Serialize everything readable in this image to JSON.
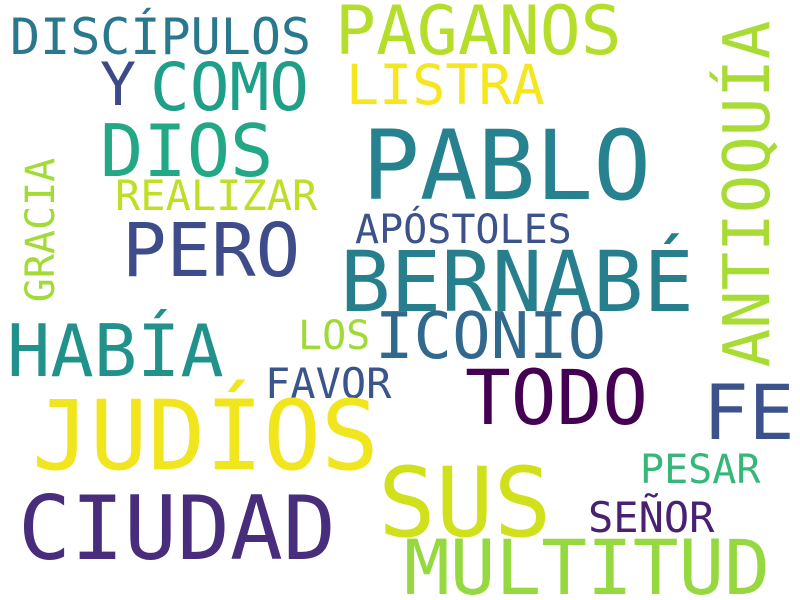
{
  "words": {
    "pablo": {
      "text": "PABLO",
      "color": "#26828e"
    },
    "bernabe": {
      "text": "BERNABÉ",
      "color": "#277f8e"
    },
    "judios": {
      "text": "JUDÍOS",
      "color": "#f1e51d"
    },
    "sus": {
      "text": "SUS",
      "color": "#d0e11c"
    },
    "ciudad": {
      "text": "CIUDAD",
      "color": "#472d7b"
    },
    "multitud": {
      "text": "MULTITUD",
      "color": "#95d840"
    },
    "paganos": {
      "text": "PAGANOS",
      "color": "#b5de2b"
    },
    "todo": {
      "text": "TODO",
      "color": "#440154"
    },
    "antioquia": {
      "text": "ANTIOQUÍA",
      "color": "#a8db34"
    },
    "habia": {
      "text": "HABÍA",
      "color": "#21918c"
    },
    "fe": {
      "text": "FE",
      "color": "#3b528b"
    },
    "como": {
      "text": "COMO",
      "color": "#1f9e89"
    },
    "dios": {
      "text": "DIOS",
      "color": "#22a884"
    },
    "pero": {
      "text": "PERO",
      "color": "#3e4c8a"
    },
    "iconio": {
      "text": "ICONIO",
      "color": "#31688e"
    },
    "discipulos": {
      "text": "DISCÍPULOS",
      "color": "#2a788e"
    },
    "listra": {
      "text": "LISTRA",
      "color": "#f6e620"
    },
    "y": {
      "text": "Y",
      "color": "#3e4989"
    },
    "realizar": {
      "text": "REALIZAR",
      "color": "#bddf26"
    },
    "apostoles": {
      "text": "APÓSTOLES",
      "color": "#3b528b"
    },
    "gracia": {
      "text": "GRACIA",
      "color": "#a2da37"
    },
    "los": {
      "text": "LOS",
      "color": "#a0da39"
    },
    "favor": {
      "text": "FAVOR",
      "color": "#3a548c"
    },
    "pesar": {
      "text": "PESAR",
      "color": "#35b779"
    },
    "senor": {
      "text": "SEÑOR",
      "color": "#482173"
    }
  }
}
